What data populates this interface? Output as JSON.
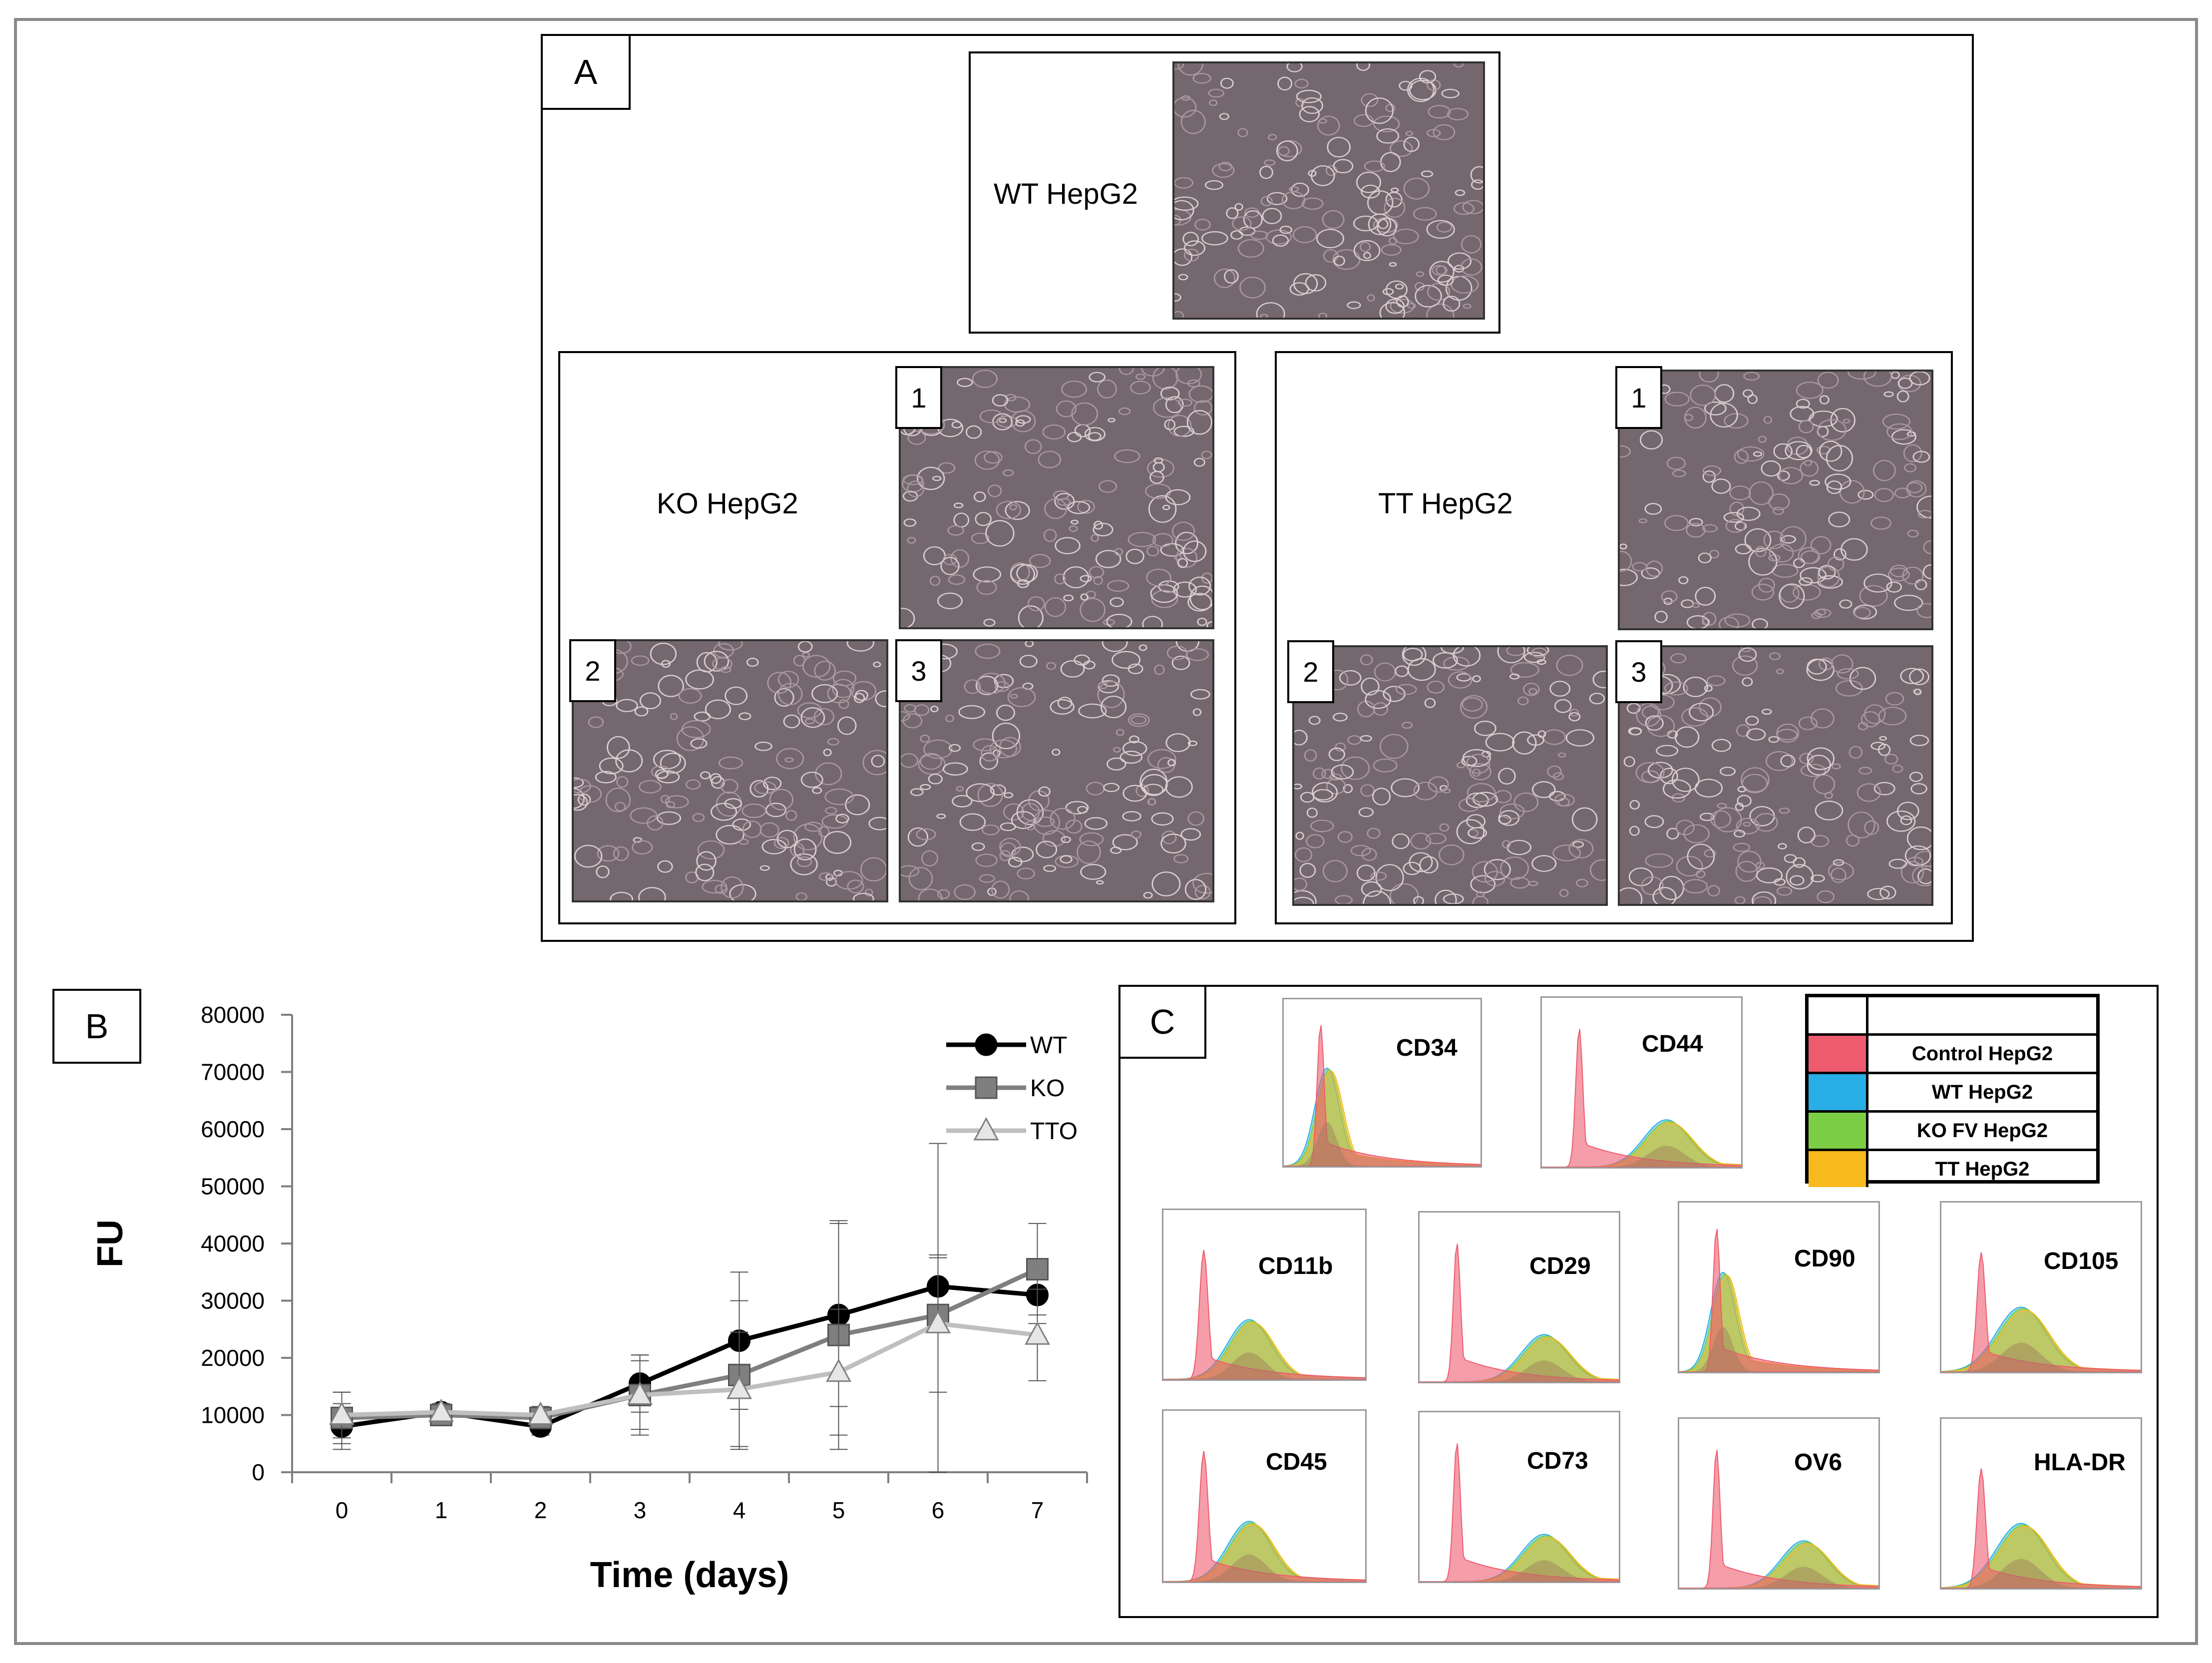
{
  "panels": {
    "a": {
      "label": "A"
    },
    "b": {
      "label": "B"
    },
    "c": {
      "label": "C"
    }
  },
  "panel_a": {
    "wt": {
      "label": "WT HepG2"
    },
    "ko": {
      "label": "KO HepG2",
      "images": [
        "1",
        "2",
        "3"
      ]
    },
    "tt": {
      "label": "TT HepG2",
      "images": [
        "1",
        "2",
        "3"
      ]
    }
  },
  "panel_c": {
    "markers": [
      "CD34",
      "CD44",
      "CD11b",
      "CD29",
      "CD90",
      "CD105",
      "CD45",
      "CD73",
      "OV6",
      "HLA-DR"
    ],
    "legend": [
      {
        "label": "Control  HepG2",
        "color": "#ef5b6e"
      },
      {
        "label": "WT  HepG2",
        "color": "#29aee8"
      },
      {
        "label": "KO FV  HepG2",
        "color": "#7ccf45"
      },
      {
        "label": "TT  HepG2",
        "color": "#f7b91b"
      }
    ]
  },
  "chart_data": {
    "type": "line",
    "title": "",
    "xlabel": "Time (days)",
    "ylabel": "FU",
    "x": [
      0,
      1,
      2,
      3,
      4,
      5,
      6,
      7
    ],
    "ylim": [
      0,
      80000
    ],
    "yticks": [
      0,
      10000,
      20000,
      30000,
      40000,
      50000,
      60000,
      70000,
      80000
    ],
    "legend_position": "top-right",
    "series": [
      {
        "name": "WT",
        "color": "#000000",
        "marker": "circle",
        "values": [
          8000,
          10500,
          8000,
          15500,
          23000,
          27500,
          32500,
          31000
        ],
        "errors": [
          4000,
          1500,
          1500,
          5000,
          12000,
          16000,
          5000,
          5000
        ]
      },
      {
        "name": "KO",
        "color": "#7f7f7f",
        "marker": "square",
        "values": [
          9500,
          10000,
          9500,
          13500,
          17000,
          24000,
          27500,
          35500
        ],
        "errors": [
          4500,
          1500,
          1000,
          7000,
          13000,
          20000,
          30000,
          8000
        ]
      },
      {
        "name": "TTO",
        "color": "#bfbfbf",
        "marker": "triangle",
        "values": [
          10000,
          10500,
          10000,
          13500,
          14500,
          17500,
          26000,
          24000
        ],
        "errors": [
          4000,
          1500,
          1500,
          6000,
          10000,
          11000,
          12000,
          8000
        ]
      }
    ]
  }
}
